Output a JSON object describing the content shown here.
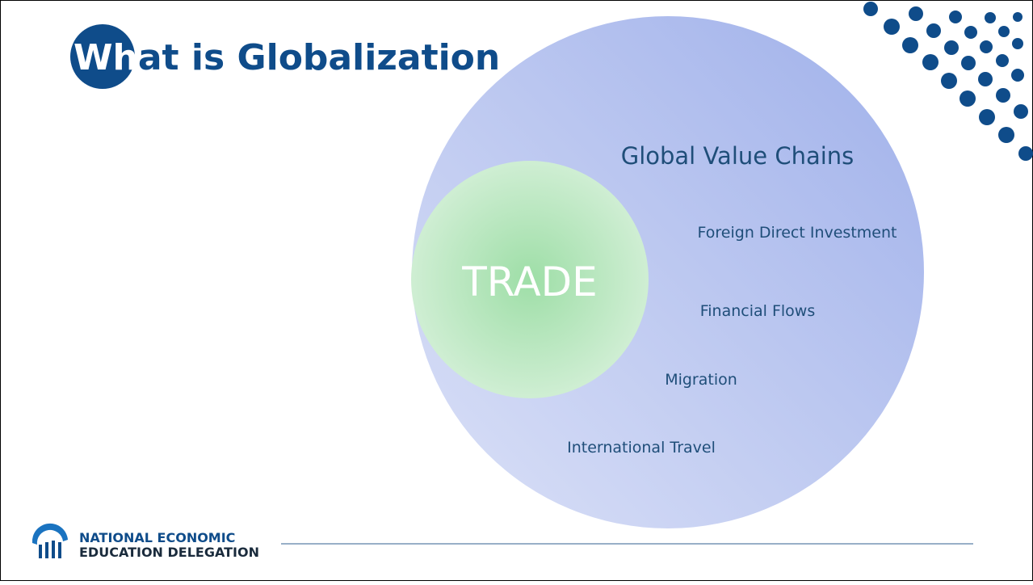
{
  "header": {
    "title_first": "Wh",
    "title_rest": "at is Globalization"
  },
  "diagram": {
    "outer_label": "Global Value Chains",
    "inner_label": "TRADE",
    "items": [
      "Foreign Direct Investment",
      "Financial Flows",
      "Migration",
      "International Travel"
    ]
  },
  "footer": {
    "org_line1": "NATIONAL ECONOMIC",
    "org_line2": "EDUCATION DELEGATION"
  }
}
